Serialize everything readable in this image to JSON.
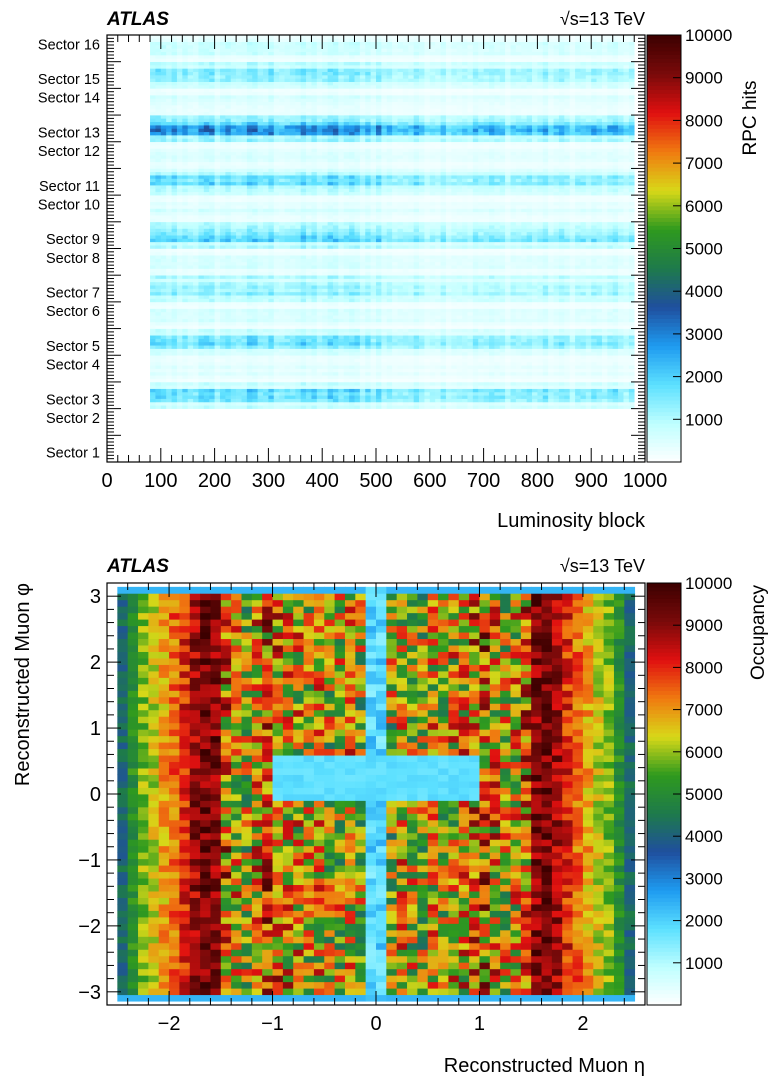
{
  "chart_data": [
    {
      "type": "heatmap",
      "experiment_label": "ATLAS",
      "energy_label": "√s=13 TeV",
      "xlabel": "Luminosity block",
      "ylabel": "",
      "colorbar_label": "RPC hits",
      "x_ticks": [
        "0",
        "100",
        "200",
        "300",
        "400",
        "500",
        "600",
        "700",
        "800",
        "900",
        "1000"
      ],
      "xlim": [
        0,
        1000
      ],
      "y_categories": [
        "Sector 1",
        "Sector 2",
        "Sector 3",
        "Sector 4",
        "Sector 5",
        "Sector 6",
        "Sector 7",
        "Sector 8",
        "Sector 9",
        "Sector 10",
        "Sector 11",
        "Sector 12",
        "Sector 13",
        "Sector 14",
        "Sector 15",
        "Sector 16"
      ],
      "colorbar_ticks": [
        "1000",
        "2000",
        "3000",
        "4000",
        "5000",
        "6000",
        "7000",
        "8000",
        "9000",
        "10000"
      ],
      "zlim": [
        0,
        10000
      ],
      "filled_x_range": [
        80,
        975
      ],
      "sector_levels": [
        0,
        0,
        1400,
        450,
        1500,
        500,
        1500,
        500,
        1600,
        500,
        1400,
        500,
        2200,
        500,
        1400,
        600
      ],
      "colormap": [
        "#ffffff",
        "#bfffff",
        "#5ce0ff",
        "#1e9bf0",
        "#1f4f9e",
        "#1e7a4b",
        "#2f9a1e",
        "#d8d818",
        "#f07a10",
        "#e01010",
        "#7a0a0a",
        "#3c0000"
      ]
    },
    {
      "type": "heatmap",
      "experiment_label": "ATLAS",
      "energy_label": "√s=13 TeV",
      "xlabel": "Reconstructed Muon η",
      "ylabel": "Reconstructed Muon φ",
      "colorbar_label": "Occupancy",
      "x_ticks": [
        {
          "value": -2,
          "label": "−2"
        },
        {
          "value": -1,
          "label": "−1"
        },
        {
          "value": 0,
          "label": "0"
        },
        {
          "value": 1,
          "label": "1"
        },
        {
          "value": 2,
          "label": "2"
        }
      ],
      "y_ticks": [
        {
          "value": -3,
          "label": "−3"
        },
        {
          "value": -2,
          "label": "−2"
        },
        {
          "value": -1,
          "label": "−1"
        },
        {
          "value": 0,
          "label": "0"
        },
        {
          "value": 1,
          "label": "1"
        },
        {
          "value": 2,
          "label": "2"
        },
        {
          "value": 3,
          "label": "3"
        }
      ],
      "xlim": [
        -2.6,
        2.6
      ],
      "ylim": [
        -3.2,
        3.2
      ],
      "colorbar_ticks": [
        "1000",
        "2000",
        "3000",
        "4000",
        "5000",
        "6000",
        "7000",
        "8000",
        "9000",
        "10000"
      ],
      "zlim": [
        0,
        10000
      ],
      "n_eta_bins": 50,
      "n_phi_bins": 64,
      "eta_profile_abs": [
        [
          0.05,
          2200
        ],
        [
          0.15,
          7000
        ],
        [
          0.25,
          7600
        ],
        [
          0.35,
          7200
        ],
        [
          0.45,
          7000
        ],
        [
          0.55,
          7500
        ],
        [
          0.65,
          7200
        ],
        [
          0.75,
          7600
        ],
        [
          0.85,
          7800
        ],
        [
          0.95,
          8000
        ],
        [
          1.05,
          8500
        ],
        [
          1.15,
          7800
        ],
        [
          1.25,
          7200
        ],
        [
          1.35,
          7500
        ],
        [
          1.45,
          8300
        ],
        [
          1.55,
          9300
        ],
        [
          1.65,
          9500
        ],
        [
          1.75,
          9000
        ],
        [
          1.85,
          8200
        ],
        [
          1.95,
          7600
        ],
        [
          2.05,
          7000
        ],
        [
          2.15,
          6400
        ],
        [
          2.25,
          6000
        ],
        [
          2.35,
          5200
        ],
        [
          2.45,
          4300
        ],
        [
          2.55,
          1500
        ]
      ],
      "low_region": {
        "eta": [
          -1.0,
          1.0
        ],
        "phi": [
          -0.1,
          0.6
        ],
        "value": 1800
      },
      "colormap": [
        "#ffffff",
        "#bfffff",
        "#5ce0ff",
        "#1e9bf0",
        "#1f4f9e",
        "#1e7a4b",
        "#2f9a1e",
        "#d8d818",
        "#f07a10",
        "#e01010",
        "#7a0a0a",
        "#3c0000"
      ]
    }
  ]
}
